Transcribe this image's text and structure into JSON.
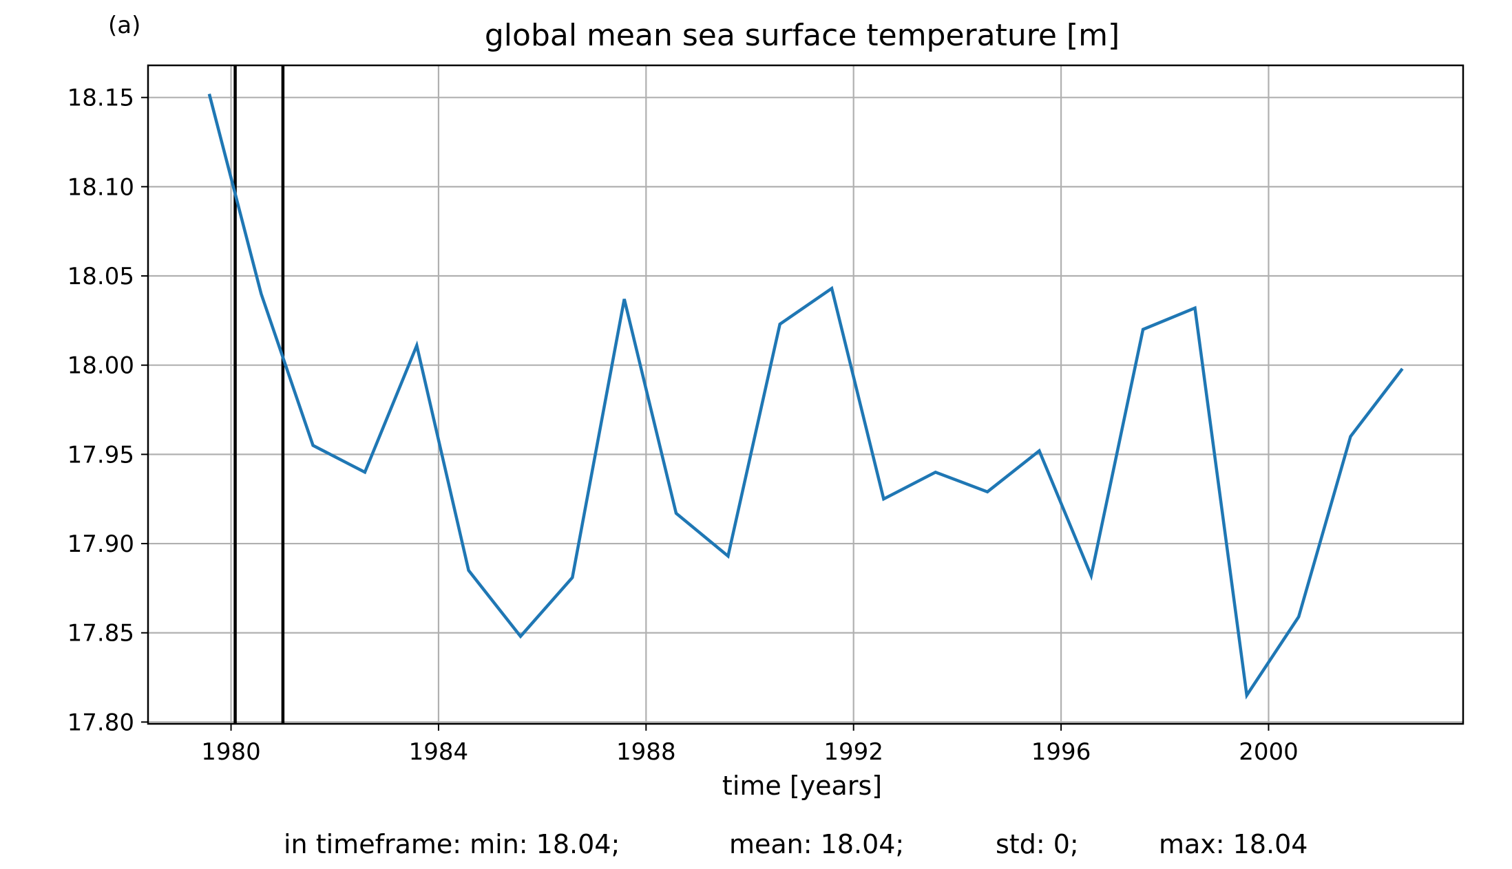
{
  "panel_label": "(a)",
  "chart_data": {
    "type": "line",
    "title": "global mean sea surface temperature [m]",
    "xlabel": "time [years]",
    "ylabel": "",
    "xlim": [
      1978.4,
      2003.75
    ],
    "ylim": [
      17.799,
      18.168
    ],
    "x_ticks": [
      1980,
      1984,
      1988,
      1992,
      1996,
      2000
    ],
    "y_ticks": [
      17.8,
      17.85,
      17.9,
      17.95,
      18.0,
      18.05,
      18.1,
      18.15
    ],
    "y_tick_labels": [
      "17.80",
      "17.85",
      "17.90",
      "17.95",
      "18.00",
      "18.05",
      "18.10",
      "18.15"
    ],
    "grid": true,
    "series": [
      {
        "color": "#1f77b4",
        "x": [
          1979.58,
          1980.58,
          1981.58,
          1982.58,
          1983.58,
          1984.58,
          1985.58,
          1986.58,
          1987.58,
          1988.58,
          1989.58,
          1990.58,
          1991.58,
          1992.58,
          1993.58,
          1994.58,
          1995.58,
          1996.58,
          1997.58,
          1998.58,
          1999.58,
          2000.58,
          2001.58,
          2002.58
        ],
        "y": [
          18.152,
          18.04,
          17.955,
          17.94,
          18.011,
          17.885,
          17.848,
          17.881,
          18.037,
          17.917,
          17.893,
          18.023,
          18.043,
          17.925,
          17.94,
          17.929,
          17.952,
          17.882,
          18.02,
          18.032,
          17.815,
          17.859,
          17.96,
          17.998
        ]
      }
    ],
    "vlines": [
      {
        "x": 1980.08,
        "color": "#000000"
      },
      {
        "x": 1981.0,
        "color": "#000000"
      }
    ]
  },
  "stats": {
    "prefix": "in timeframe: min: 18.04;",
    "mean": "mean: 18.04;",
    "std": "std: 0;",
    "max": "max: 18.04"
  }
}
